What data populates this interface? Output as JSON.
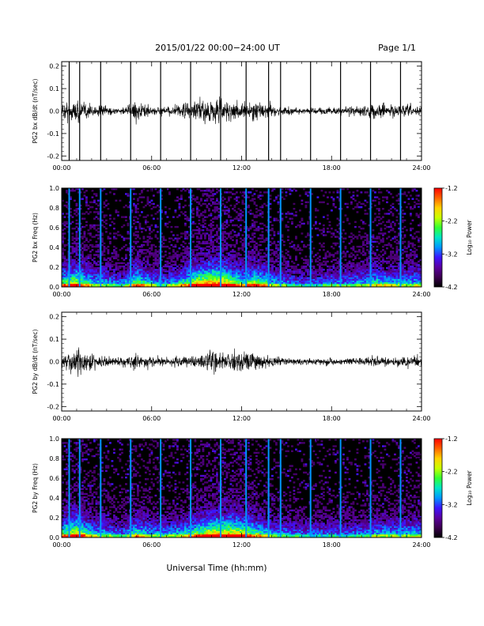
{
  "header": {
    "title": "2015/01/22  00:00−24:00 UT",
    "page": "Page 1/1"
  },
  "x_axis_label": "Universal Time (hh:mm)",
  "colorbar": {
    "label": "Log₁₀ Power",
    "ticks": [
      "-1.2",
      "-2.2",
      "-3.2",
      "-4.2"
    ],
    "range": [
      -4.2,
      -1.2
    ],
    "colors": [
      "#000000",
      "#3c0050",
      "#5a00a0",
      "#3c14ff",
      "#0096ff",
      "#00e6c8",
      "#32ff32",
      "#c8ff00",
      "#ffd200",
      "#ff6400",
      "#ff0000"
    ]
  },
  "chart_data": [
    {
      "type": "line",
      "ylabel": "PG2 bx dB/dt (nT/sec)",
      "xlim": [
        0,
        24
      ],
      "ylim": [
        -0.22,
        0.22
      ],
      "x_ticks": [
        "00:00",
        "06:00",
        "12:00",
        "18:00",
        "24:00"
      ],
      "y_ticks": [
        "0.2",
        "0.1",
        "0.0",
        "-0.1",
        "-0.2"
      ],
      "y_tick_values": [
        0.2,
        0.1,
        0.0,
        -0.1,
        -0.2
      ],
      "activity": {
        "hours": [
          0,
          1,
          2,
          3,
          4,
          5,
          6,
          7,
          8,
          9,
          10,
          11,
          12,
          13,
          14,
          15,
          16,
          17,
          18,
          19,
          20,
          21,
          22,
          23,
          24
        ],
        "amplitude": [
          0.06,
          0.09,
          0.05,
          0.04,
          0.025,
          0.07,
          0.04,
          0.03,
          0.05,
          0.08,
          0.1,
          0.09,
          0.06,
          0.07,
          0.05,
          0.03,
          0.025,
          0.025,
          0.03,
          0.03,
          0.04,
          0.06,
          0.05,
          0.04,
          0.05
        ]
      },
      "spikes_hours": [
        0.5,
        1.2,
        2.6,
        4.6,
        6.6,
        8.6,
        10.6,
        12.3,
        13.8,
        14.6,
        16.6,
        18.6,
        20.6,
        22.6
      ]
    },
    {
      "type": "heatmap",
      "ylabel": "PG2 bx Freq (Hz)",
      "xlim": [
        0,
        24
      ],
      "ylim": [
        0,
        1.0
      ],
      "x_ticks": [
        "00:00",
        "06:00",
        "12:00",
        "18:00",
        "24:00"
      ],
      "y_ticks": [
        "1.0",
        "0.8",
        "0.6",
        "0.4",
        "0.2",
        "0.0"
      ],
      "y_tick_values": [
        1.0,
        0.8,
        0.6,
        0.4,
        0.2,
        0.0
      ],
      "activity": {
        "hours": [
          0,
          1,
          2,
          3,
          4,
          5,
          6,
          7,
          8,
          9,
          10,
          11,
          12,
          13,
          14,
          15,
          16,
          17,
          18,
          19,
          20,
          21,
          22,
          23,
          24
        ],
        "amplitude": [
          0.6,
          0.8,
          0.5,
          0.45,
          0.35,
          0.7,
          0.45,
          0.4,
          0.55,
          0.8,
          0.95,
          0.85,
          0.6,
          0.7,
          0.5,
          0.4,
          0.35,
          0.35,
          0.4,
          0.4,
          0.45,
          0.55,
          0.5,
          0.45,
          0.5
        ]
      },
      "spikes_hours": [
        0.5,
        1.2,
        2.6,
        4.6,
        6.6,
        8.6,
        10.6,
        12.3,
        13.8,
        14.6,
        16.6,
        18.6,
        20.6,
        22.6
      ]
    },
    {
      "type": "line",
      "ylabel": "PG2 by dB/dt (nT/sec)",
      "xlim": [
        0,
        24
      ],
      "ylim": [
        -0.22,
        0.22
      ],
      "x_ticks": [
        "00:00",
        "06:00",
        "12:00",
        "18:00",
        "24:00"
      ],
      "y_ticks": [
        "0.2",
        "0.1",
        "0.0",
        "-0.1",
        "-0.2"
      ],
      "y_tick_values": [
        0.2,
        0.1,
        0.0,
        -0.1,
        -0.2
      ],
      "activity": {
        "hours": [
          0,
          1,
          2,
          3,
          4,
          5,
          6,
          7,
          8,
          9,
          10,
          11,
          12,
          13,
          14,
          15,
          16,
          17,
          18,
          19,
          20,
          21,
          22,
          23,
          24
        ],
        "amplitude": [
          0.06,
          0.12,
          0.06,
          0.04,
          0.03,
          0.06,
          0.04,
          0.03,
          0.04,
          0.05,
          0.08,
          0.08,
          0.09,
          0.06,
          0.04,
          0.03,
          0.025,
          0.025,
          0.025,
          0.025,
          0.03,
          0.04,
          0.04,
          0.04,
          0.05
        ]
      },
      "spikes_hours": []
    },
    {
      "type": "heatmap",
      "ylabel": "PG2 by Freq (Hz)",
      "xlim": [
        0,
        24
      ],
      "ylim": [
        0,
        1.0
      ],
      "x_ticks": [
        "00:00",
        "06:00",
        "12:00",
        "18:00",
        "24:00"
      ],
      "y_ticks": [
        "1.0",
        "0.8",
        "0.6",
        "0.4",
        "0.2",
        "0.0"
      ],
      "y_tick_values": [
        1.0,
        0.8,
        0.6,
        0.4,
        0.2,
        0.0
      ],
      "activity": {
        "hours": [
          0,
          1,
          2,
          3,
          4,
          5,
          6,
          7,
          8,
          9,
          10,
          11,
          12,
          13,
          14,
          15,
          16,
          17,
          18,
          19,
          20,
          21,
          22,
          23,
          24
        ],
        "amplitude": [
          0.6,
          0.85,
          0.5,
          0.45,
          0.35,
          0.6,
          0.45,
          0.4,
          0.5,
          0.65,
          0.85,
          0.85,
          0.8,
          0.6,
          0.45,
          0.4,
          0.35,
          0.35,
          0.35,
          0.35,
          0.4,
          0.45,
          0.45,
          0.45,
          0.5
        ]
      },
      "spikes_hours": [
        0.5,
        1.2,
        2.6,
        4.6,
        6.6,
        8.6,
        10.6,
        12.3,
        13.8,
        14.6,
        16.6,
        18.6,
        20.6,
        22.6
      ]
    }
  ]
}
